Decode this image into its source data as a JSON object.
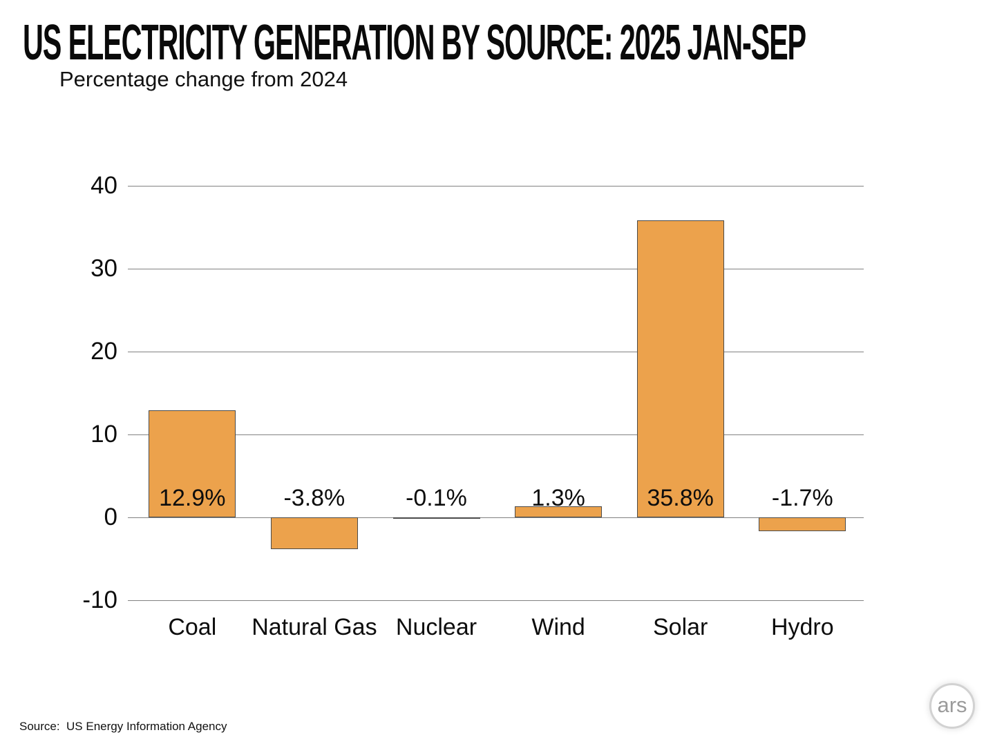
{
  "header": {
    "title": "US ELECTRICITY GENERATION BY SOURCE: 2025 JAN-SEP",
    "subtitle": "Percentage change from 2024"
  },
  "chart_data": {
    "type": "bar",
    "title": "US ELECTRICITY GENERATION BY SOURCE: 2025 JAN-SEP",
    "subtitle": "Percentage change from 2024",
    "categories": [
      "Coal",
      "Natural Gas",
      "Nuclear",
      "Wind",
      "Solar",
      "Hydro"
    ],
    "values": [
      12.9,
      -3.8,
      -0.1,
      1.3,
      35.8,
      -1.7
    ],
    "value_labels": [
      "12.9%",
      "-3.8%",
      "-0.1%",
      "1.3%",
      "35.8%",
      "-1.7%"
    ],
    "xlabel": "",
    "ylabel": "",
    "ylim": [
      -10,
      40
    ],
    "yticks": [
      40,
      30,
      20,
      10,
      0,
      -10
    ],
    "grid": true,
    "legend": false,
    "bar_color": "#ECA24C",
    "bar_border_color": "#4a4a4a",
    "gridline_color": "#818181"
  },
  "footer": {
    "source": "Source:  US Energy Information Agency",
    "logo_text": "ars"
  }
}
